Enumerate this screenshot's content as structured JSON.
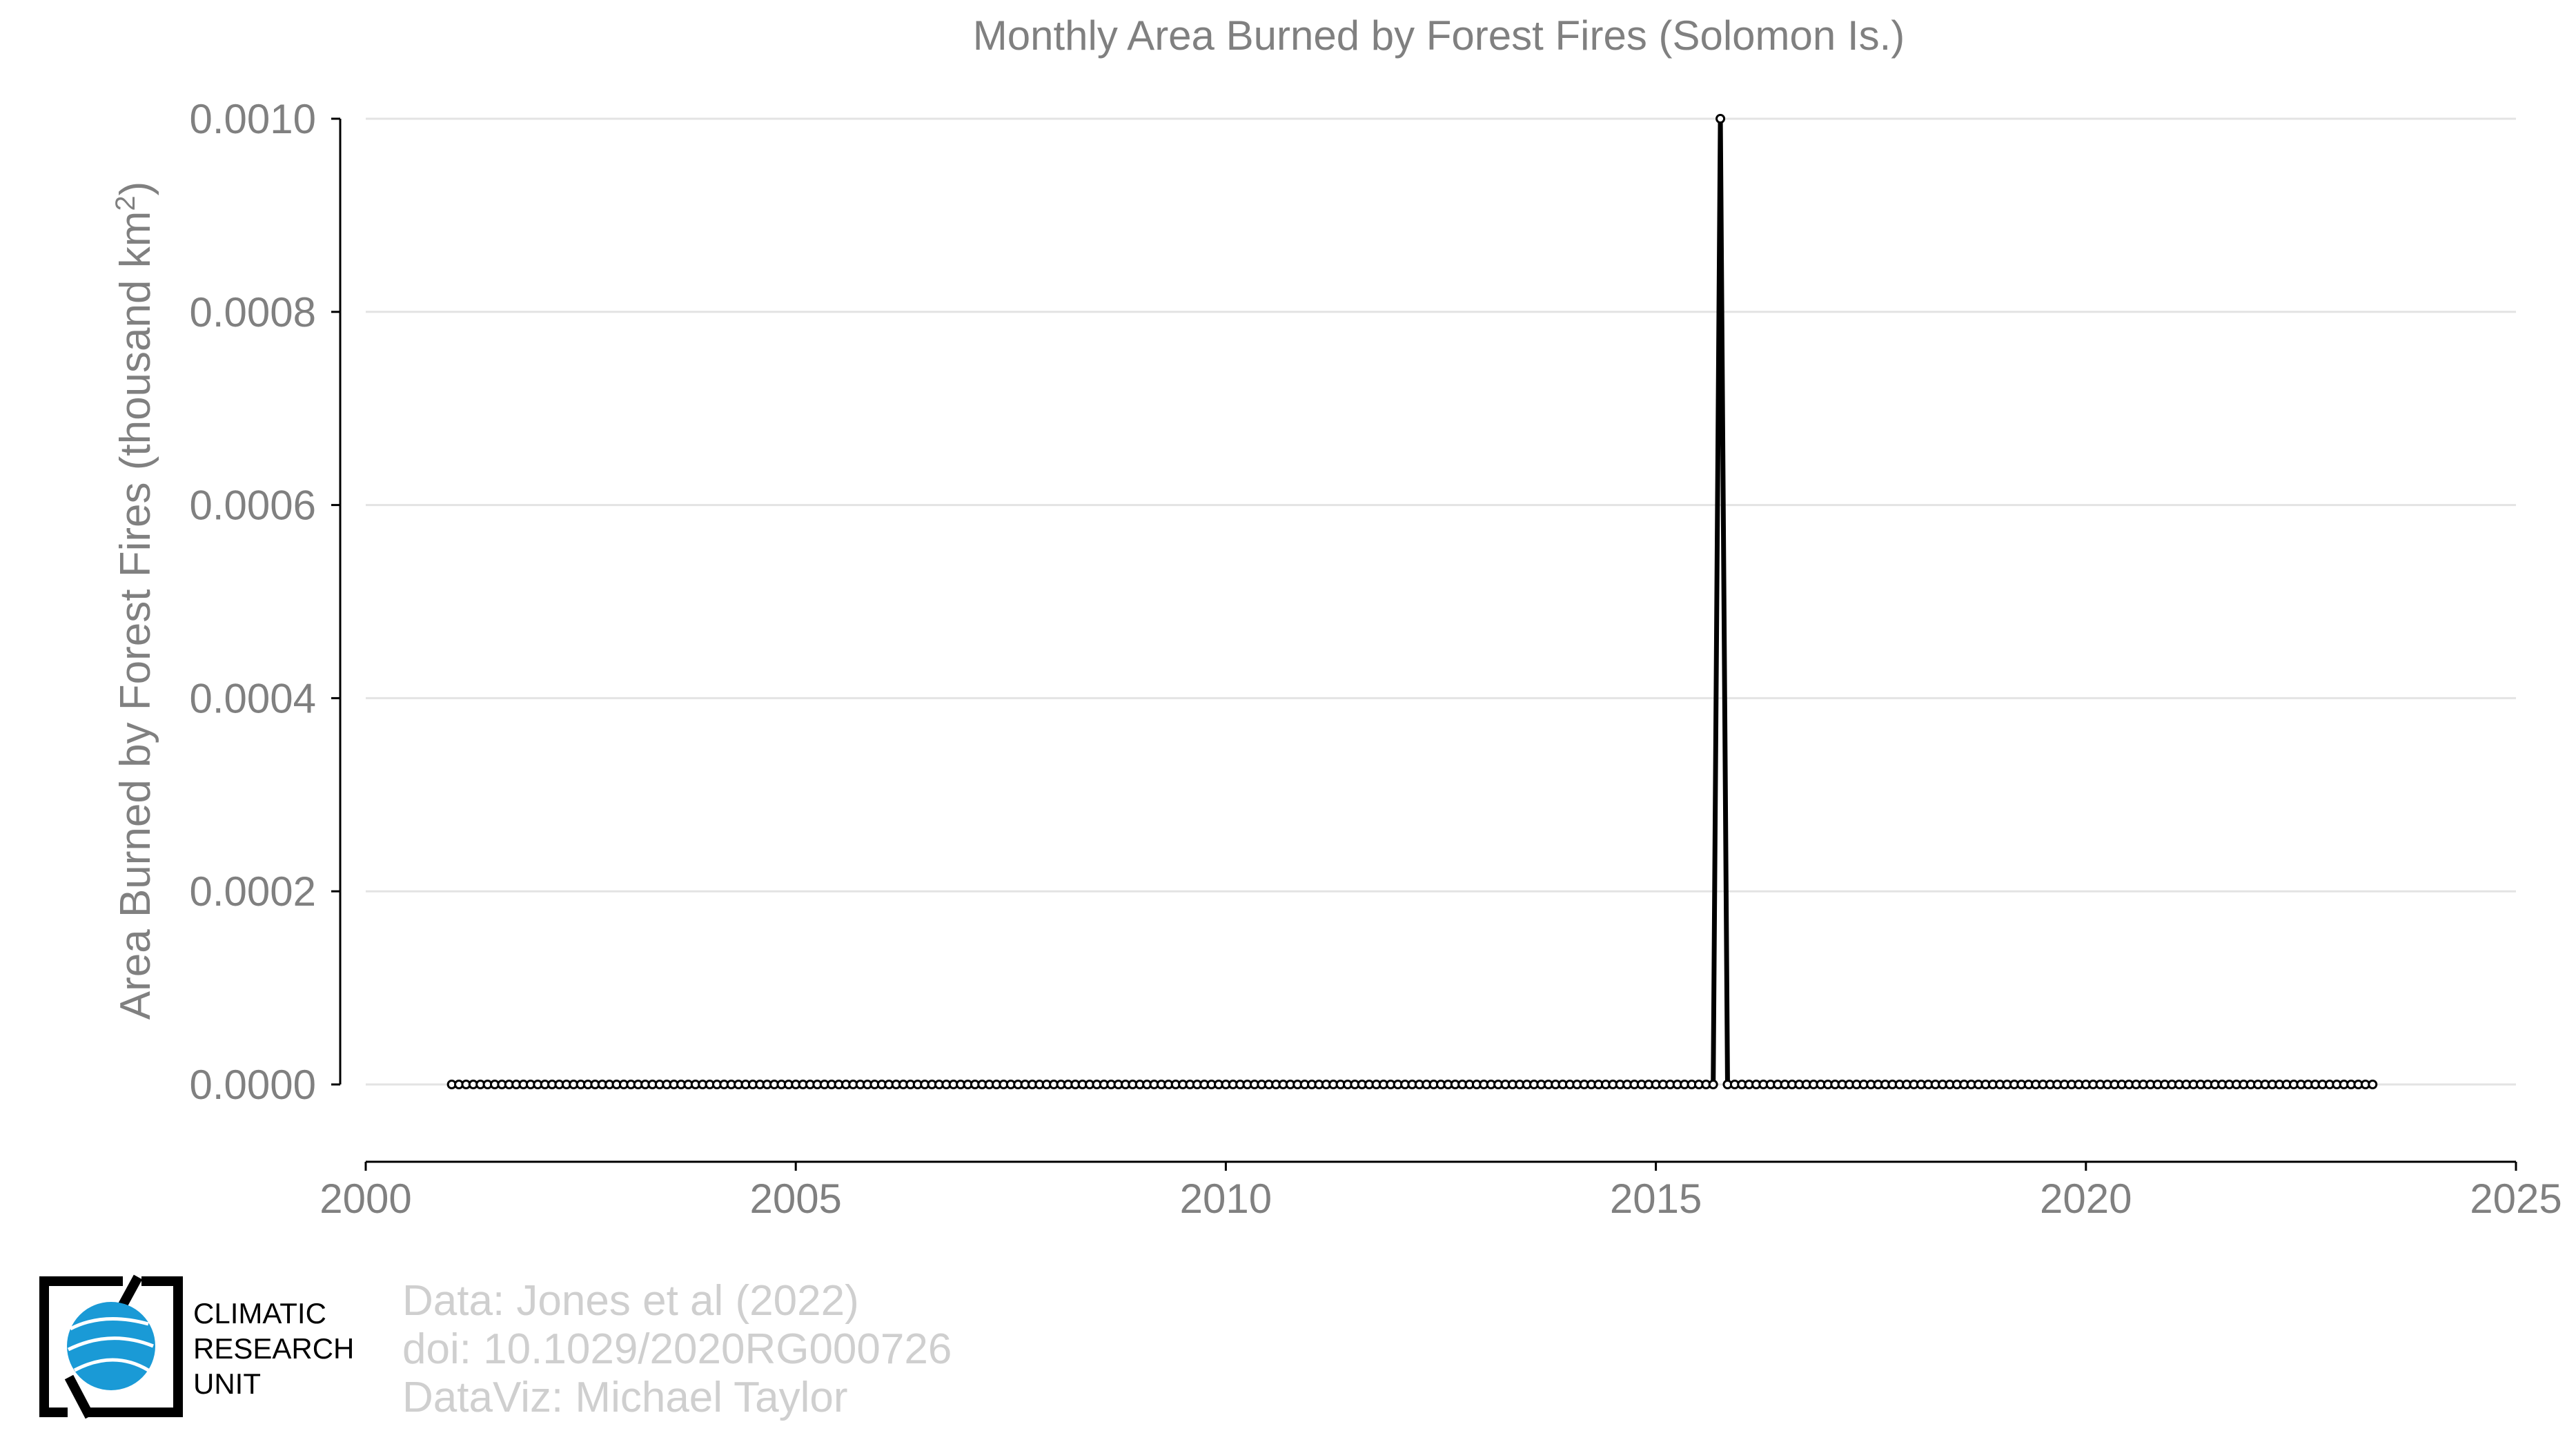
{
  "chart_data": {
    "type": "line",
    "title": "Monthly Area Burned by Forest Fires (Solomon Is.)",
    "ylabel_main": "Area Burned by Forest Fires (thousand km",
    "ylabel_sup": "2",
    "ylabel_end": ")",
    "xlabel": "",
    "xlim": [
      2000,
      2025
    ],
    "ylim": [
      0,
      0.001
    ],
    "x_ticks": [
      2000,
      2005,
      2010,
      2015,
      2020,
      2025
    ],
    "x_tick_labels": [
      "2000",
      "2005",
      "2010",
      "2015",
      "2020",
      "2025"
    ],
    "y_ticks": [
      0,
      0.0002,
      0.0004,
      0.0006,
      0.0008,
      0.001
    ],
    "y_tick_labels": [
      "0.0000",
      "0.0002",
      "0.0004",
      "0.0006",
      "0.0008",
      "0.0010"
    ],
    "grid": "horizontal",
    "series": [
      {
        "start": "2001-01",
        "end": "2023-05",
        "frequency": "monthly",
        "default_value": 0,
        "nonzero": [
          {
            "date": "2015-10",
            "value": 0.001
          }
        ]
      }
    ]
  },
  "credits": {
    "line1": "Data: Jones et al (2022)",
    "line2": "doi: 10.1029/2020RG000726",
    "line3": "DataViz: Michael Taylor"
  },
  "logo": {
    "line1": "CLIMATIC",
    "line2": "RESEARCH",
    "line3": "UNIT",
    "globe_color": "#1a9ad6"
  }
}
